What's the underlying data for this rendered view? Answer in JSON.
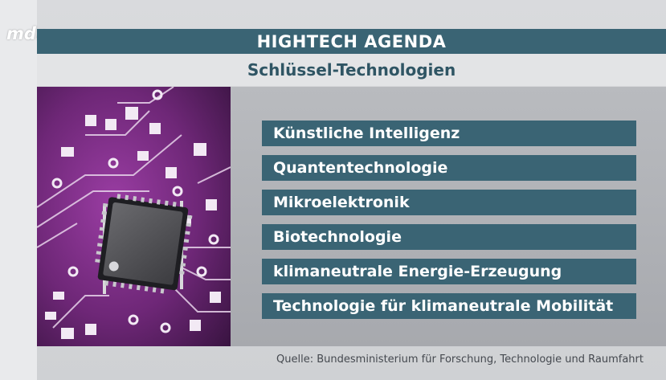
{
  "logo": {
    "text": "mdr"
  },
  "header": {
    "title": "HIGHTECH AGENDA",
    "subtitle": "Schlüssel-Technologien"
  },
  "colors": {
    "bar": "#3a6474",
    "circuit_purple": "#7a2d84",
    "background": "#d9dadd"
  },
  "items": [
    {
      "label": "Künstliche Intelligenz"
    },
    {
      "label": "Quantentechnologie"
    },
    {
      "label": "Mikroelektronik"
    },
    {
      "label": "Biotechnologie"
    },
    {
      "label": "klimaneutrale Energie-Erzeugung"
    },
    {
      "label": "Technologie für klimaneutrale Mobilität"
    }
  ],
  "footer": {
    "source": "Quelle: Bundesministerium für Forschung, Technologie und Raumfahrt"
  }
}
